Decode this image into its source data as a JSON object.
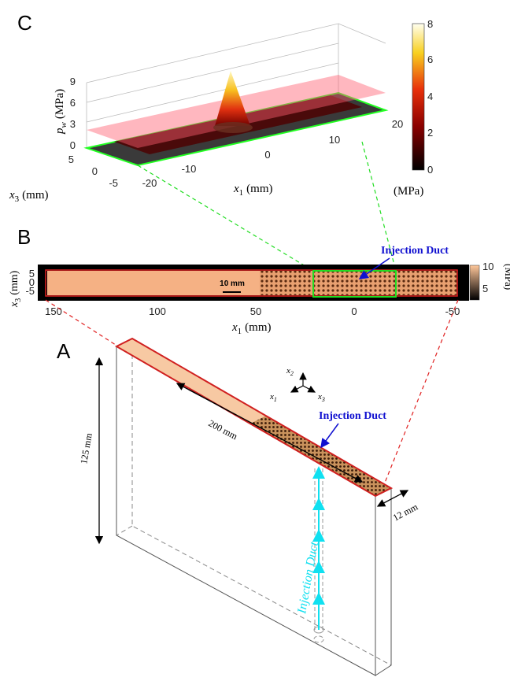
{
  "panel_c": {
    "label": "C",
    "z_label": {
      "symbol": "p",
      "subscript": "w",
      "unit": "(MPa)"
    },
    "z_ticks": [
      "9",
      "6",
      "3",
      "0"
    ],
    "x3_ticks": [
      "5",
      "0",
      "-5"
    ],
    "x3_label": {
      "symbol": "x",
      "subscript": "3",
      "unit": "(mm)"
    },
    "x1_ticks": [
      "-20",
      "-10",
      "0",
      "10",
      "20"
    ],
    "x1_label": {
      "symbol": "x",
      "subscript": "1",
      "unit": "(mm)"
    },
    "colorbar_ticks": [
      "8",
      "6",
      "4",
      "2",
      "0"
    ],
    "colorbar_unit": "(MPa)"
  },
  "panel_b": {
    "label": "B",
    "y_label": {
      "symbol": "x",
      "subscript": "3",
      "unit": "(mm)"
    },
    "y_ticks": [
      "5",
      "0",
      "-5"
    ],
    "x_ticks": [
      "150",
      "100",
      "50",
      "0",
      "-50"
    ],
    "x_label": {
      "symbol": "x",
      "subscript": "1",
      "unit": "(mm)"
    },
    "scale_bar": "10 mm",
    "annotation": "Injection Duct",
    "colorbar_ticks": [
      "10",
      "5"
    ],
    "colorbar_unit": "(MPa)"
  },
  "panel_a": {
    "label": "A",
    "length": "200 mm",
    "height": "125 mm",
    "thickness": "12 mm",
    "axes": {
      "x2": {
        "symbol": "x",
        "subscript": "2"
      },
      "x1": {
        "symbol": "x",
        "subscript": "1"
      },
      "x3": {
        "symbol": "x",
        "subscript": "3"
      }
    },
    "annotation_top": "Injection Duct",
    "annotation_duct": "Injection Duct"
  }
}
